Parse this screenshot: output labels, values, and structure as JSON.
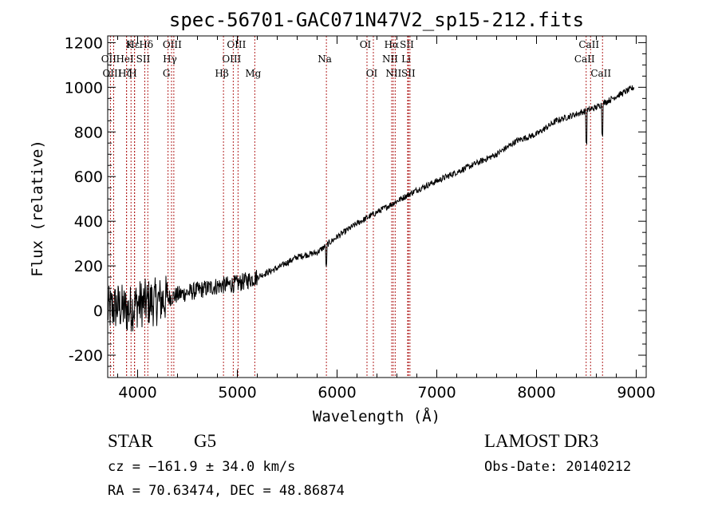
{
  "chart_data": {
    "type": "line",
    "title": "spec-56701-GAC071N47V2_sp15-212.fits",
    "xlabel": "Wavelength (Å)",
    "ylabel": "Flux (relative)",
    "xlim": [
      3700,
      9100
    ],
    "ylim": [
      -300,
      1230
    ],
    "x_ticks": [
      4000,
      5000,
      6000,
      7000,
      8000,
      9000
    ],
    "x_tick_labels": [
      "4000",
      "5000",
      "6000",
      "7000",
      "8000",
      "9000"
    ],
    "y_ticks": [
      -200,
      0,
      200,
      400,
      600,
      800,
      1000,
      1200
    ],
    "y_tick_labels": [
      "-200",
      "0",
      "200",
      "400",
      "600",
      "800",
      "1000",
      "1200"
    ],
    "spectrum_trend": {
      "x": [
        3700,
        3800,
        3900,
        4000,
        4200,
        4400,
        4600,
        4800,
        5000,
        5200,
        5400,
        5600,
        5800,
        6000,
        6200,
        6400,
        6600,
        6800,
        7000,
        7200,
        7400,
        7600,
        7800,
        8000,
        8200,
        8400,
        8600,
        8800,
        8980
      ],
      "y": [
        0,
        20,
        0,
        30,
        40,
        70,
        90,
        110,
        120,
        150,
        190,
        240,
        260,
        330,
        390,
        440,
        490,
        540,
        580,
        620,
        660,
        700,
        760,
        790,
        850,
        880,
        910,
        960,
        1000
      ]
    },
    "spectral_lines": [
      {
        "label": "Hε",
        "wavelength": 3970,
        "row": 0
      },
      {
        "label": "K",
        "wavelength": 3934,
        "row": 0
      },
      {
        "label": "Hδ",
        "wavelength": 4102,
        "row": 0
      },
      {
        "label": "OIII",
        "wavelength": 4363,
        "row": 0
      },
      {
        "label": "OIII",
        "wavelength": 5007,
        "row": 0
      },
      {
        "label": "OI",
        "wavelength": 6300,
        "row": 0
      },
      {
        "label": "Hα",
        "wavelength": 6563,
        "row": 0
      },
      {
        "label": "SII",
        "wavelength": 6716,
        "row": 0
      },
      {
        "label": "CaII",
        "wavelength": 8542,
        "row": 0
      },
      {
        "label": "OII",
        "wavelength": 3727,
        "row": 1
      },
      {
        "label": "HeI",
        "wavelength": 3889,
        "row": 1
      },
      {
        "label": "SII",
        "wavelength": 4072,
        "row": 1
      },
      {
        "label": "Hγ",
        "wavelength": 4340,
        "row": 1
      },
      {
        "label": "OIII",
        "wavelength": 4959,
        "row": 1
      },
      {
        "label": "Na",
        "wavelength": 5893,
        "row": 1
      },
      {
        "label": "NII",
        "wavelength": 6548,
        "row": 1
      },
      {
        "label": "Li",
        "wavelength": 6708,
        "row": 1
      },
      {
        "label": "CaII",
        "wavelength": 8498,
        "row": 1
      },
      {
        "label": "OIII",
        "wavelength": 3760,
        "row": 2
      },
      {
        "label": "Hζ",
        "wavelength": 3889,
        "row": 2
      },
      {
        "label": "H",
        "wavelength": 3968,
        "row": 2
      },
      {
        "label": "G",
        "wavelength": 4305,
        "row": 2
      },
      {
        "label": "Hβ",
        "wavelength": 4861,
        "row": 2
      },
      {
        "label": "Mg",
        "wavelength": 5175,
        "row": 2
      },
      {
        "label": "OI",
        "wavelength": 6364,
        "row": 2
      },
      {
        "label": "NII",
        "wavelength": 6583,
        "row": 2
      },
      {
        "label": "SII",
        "wavelength": 6731,
        "row": 2
      },
      {
        "label": "CaII",
        "wavelength": 8662,
        "row": 2
      }
    ]
  },
  "info": {
    "class": "STAR",
    "subclass": "G5",
    "survey": "LAMOST DR3",
    "redshift": "cz = −161.9 ± 34.0 km/s",
    "obs_date": "Obs-Date: 20140212",
    "coords": "RA =  70.63474, DEC =  48.86874"
  },
  "colors": {
    "line_marker": "#b22222",
    "spectrum": "#000000"
  }
}
